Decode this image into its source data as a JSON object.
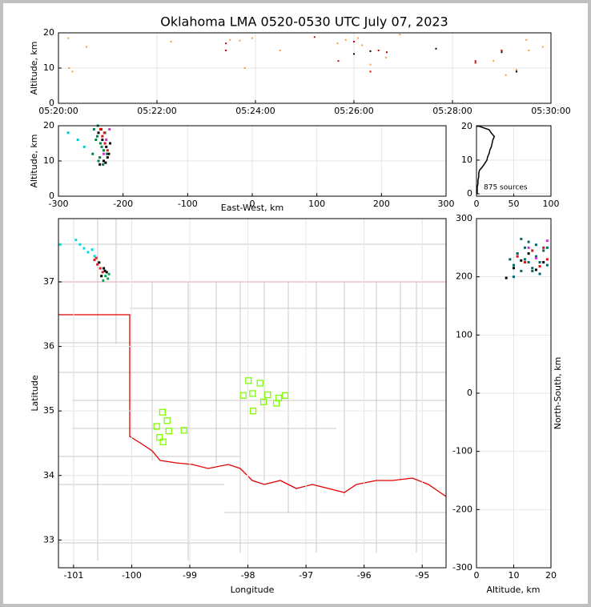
{
  "chart_data": [
    {
      "type": "scatter",
      "title": "Oklahoma LMA 0520-0530 UTC July 07, 2023",
      "ylabel": "Altitude, km",
      "xlim": [
        19200,
        19800
      ],
      "xticks": [
        {
          "value": 19200,
          "label": "05:20:00"
        },
        {
          "value": 19320,
          "label": "05:22:00"
        },
        {
          "value": 19440,
          "label": "05:24:00"
        },
        {
          "value": 19560,
          "label": "05:26:00"
        },
        {
          "value": 19680,
          "label": "05:28:00"
        },
        {
          "value": 19800,
          "label": "05:30:00"
        }
      ],
      "ylim": [
        0,
        20
      ],
      "yticks": [
        0,
        10,
        20
      ],
      "grid": true,
      "series": [
        {
          "color": "#ff9933",
          "x": [
            19212,
            19213,
            19217,
            19234,
            19337,
            19409,
            19421,
            19427,
            19436,
            19470,
            19540,
            19550,
            19565,
            19570,
            19580,
            19599,
            19616,
            19730,
            19770,
            19773,
            19790,
            19758,
            19745
          ],
          "y": [
            18.5,
            10,
            9,
            16,
            17.5,
            18,
            17.8,
            10,
            18.5,
            15,
            17,
            18,
            18.5,
            16.5,
            11,
            13,
            19.5,
            12,
            18,
            15,
            16,
            9.5,
            8
          ]
        },
        {
          "color": "#cc0000",
          "x": [
            19404,
            19404,
            19512,
            19541,
            19560,
            19580,
            19590,
            19600,
            19708,
            19708,
            19740,
            19758
          ],
          "y": [
            17,
            15,
            18.8,
            12,
            17.5,
            9,
            15,
            14.5,
            12,
            11.5,
            15,
            9
          ]
        },
        {
          "color": "#000000",
          "x": [
            19560,
            19580,
            19660,
            19740,
            19758
          ],
          "y": [
            14,
            14.8,
            15.5,
            14.5,
            9
          ]
        }
      ]
    },
    {
      "type": "scatter",
      "xlabel": "East-West, km",
      "ylabel": "Altitude, km",
      "xlim": [
        -300,
        300
      ],
      "xticks": [
        -300,
        -200,
        -100,
        0,
        100,
        200,
        300
      ],
      "ylim": [
        0,
        20
      ],
      "yticks": [
        0,
        10,
        20
      ],
      "grid": true,
      "series": [
        {
          "color": "#007f3f",
          "x": [
            -245,
            -240,
            -235,
            -230,
            -236,
            -242,
            -228,
            -238,
            -225,
            -233,
            -247,
            -239,
            -231
          ],
          "y": [
            19,
            17,
            15,
            13,
            11,
            16,
            18,
            10,
            12,
            14,
            12,
            20,
            9
          ]
        },
        {
          "color": "#000000",
          "x": [
            -238,
            -232,
            -226,
            -222,
            -230,
            -236,
            -227,
            -220,
            -234,
            -224
          ],
          "y": [
            18,
            16,
            14,
            12,
            10,
            9,
            9.5,
            15,
            19,
            11
          ]
        },
        {
          "color": "#dd1111",
          "x": [
            -232,
            -228,
            -224,
            -235,
            -229
          ],
          "y": [
            17,
            15,
            13,
            19,
            18
          ]
        },
        {
          "color": "#cc33cc",
          "x": [
            -226,
            -230,
            -221
          ],
          "y": [
            16,
            12,
            19
          ]
        },
        {
          "color": "#00cccc",
          "x": [
            -285,
            -270,
            -260
          ],
          "y": [
            18,
            16,
            14
          ]
        }
      ]
    },
    {
      "type": "line",
      "annotation": "875 sources",
      "xlim": [
        0,
        100
      ],
      "xticks": [
        0,
        50,
        100
      ],
      "ylim": [
        -0.7,
        20.2
      ],
      "yticks": [
        0,
        10,
        20
      ],
      "grid": true,
      "series": [
        {
          "color": "#000000",
          "x": [
            1,
            1,
            1,
            2,
            2,
            3,
            3,
            4,
            8,
            11,
            14,
            15,
            17,
            18,
            20,
            21,
            22,
            24,
            20,
            17,
            4
          ],
          "y": [
            0,
            1,
            2,
            3,
            4,
            5,
            6,
            7,
            8,
            9,
            10,
            11,
            12,
            13,
            14,
            15,
            16,
            17,
            18,
            19,
            20
          ]
        }
      ]
    },
    {
      "type": "map",
      "xlabel": "Longitude",
      "ylabel": "Latitude",
      "xlim": [
        -101.26,
        -94.59
      ],
      "xticks": [
        -101,
        -100,
        -99,
        -98,
        -97,
        -96,
        -95
      ],
      "ylim": [
        32.57,
        37.98
      ],
      "yticks": [
        33,
        34,
        35,
        36,
        37
      ],
      "grid": true,
      "series": [
        {
          "color": "#00dddd",
          "x": [
            -101.23,
            -100.96,
            -100.82,
            -100.75,
            -100.68,
            -100.89,
            -100.64
          ],
          "y": [
            37.58,
            37.65,
            37.52,
            37.46,
            37.5,
            37.58,
            37.4
          ]
        },
        {
          "color": "#dd2222",
          "x": [
            -100.64,
            -100.59,
            -100.54,
            -100.5,
            -100.61
          ],
          "y": [
            37.34,
            37.27,
            37.21,
            37.15,
            37.37
          ]
        },
        {
          "color": "#000000",
          "x": [
            -100.56,
            -100.48,
            -100.43,
            -100.52,
            -100.46
          ],
          "y": [
            37.3,
            37.21,
            37.15,
            37.09,
            37.17
          ]
        },
        {
          "color": "#00aa55",
          "x": [
            -100.45,
            -100.39,
            -100.49,
            -100.41
          ],
          "y": [
            37.09,
            37.12,
            37.02,
            37.05
          ]
        }
      ],
      "stations": {
        "color": "#7fff00",
        "x": [
          -97.99,
          -97.79,
          -97.92,
          -98.08,
          -97.66,
          -97.73,
          -97.51,
          -97.47,
          -97.36,
          -97.91,
          -99.47,
          -99.39,
          -99.57,
          -99.36,
          -99.1,
          -99.52,
          -99.46
        ],
        "y": [
          35.47,
          35.43,
          35.27,
          35.24,
          35.25,
          35.14,
          35.12,
          35.2,
          35.24,
          35.0,
          34.98,
          34.85,
          34.76,
          34.69,
          34.7,
          34.59,
          34.52
        ]
      }
    },
    {
      "type": "scatter",
      "xlabel": "Altitude, km",
      "ylabel": "North-South, km",
      "xlim": [
        0,
        20
      ],
      "xticks": [
        0,
        10,
        20
      ],
      "ylim": [
        -300,
        300
      ],
      "yticks": [
        -300,
        -200,
        -100,
        0,
        100,
        200,
        300
      ],
      "grid": true,
      "series": [
        {
          "color": "#006666",
          "x": [
            9,
            10,
            11,
            12,
            13,
            14,
            15,
            16,
            17,
            18,
            19,
            12,
            14,
            16,
            10,
            11,
            13,
            15,
            17,
            19
          ],
          "y": [
            230,
            220,
            240,
            210,
            250,
            225,
            215,
            235,
            205,
            245,
            220,
            265,
            260,
            255,
            200,
            240,
            230,
            210,
            225,
            250
          ]
        },
        {
          "color": "#dd1111",
          "x": [
            11,
            13,
            15,
            17,
            18,
            19
          ],
          "y": [
            235,
            225,
            245,
            218,
            250,
            230
          ]
        },
        {
          "color": "#000000",
          "x": [
            8,
            10,
            12,
            14,
            16,
            18
          ],
          "y": [
            198,
            215,
            228,
            240,
            212,
            225
          ]
        },
        {
          "color": "#cc33cc",
          "x": [
            14,
            16,
            19
          ],
          "y": [
            250,
            232,
            262
          ]
        }
      ]
    }
  ]
}
